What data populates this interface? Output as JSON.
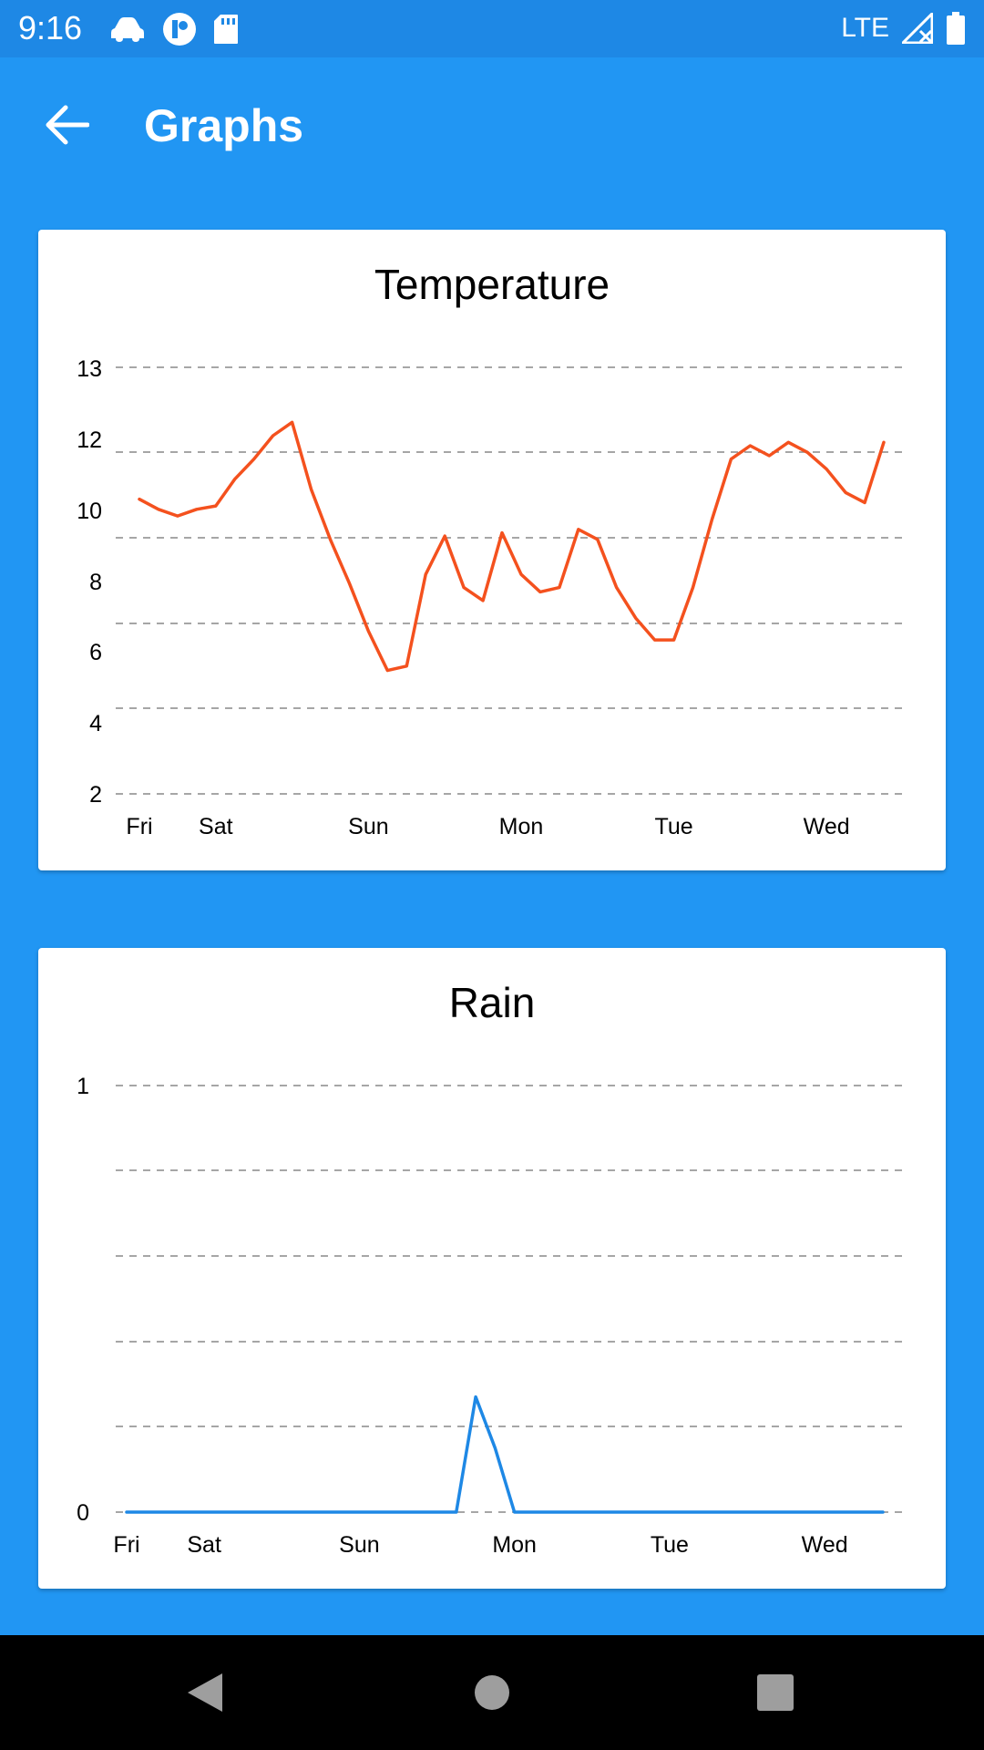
{
  "status_bar": {
    "time": "9:16",
    "network": "LTE",
    "left_icons": [
      "car-icon",
      "app-notification-icon",
      "sd-card-icon"
    ],
    "right_icons": [
      "signal-icon",
      "battery-icon"
    ]
  },
  "app_bar": {
    "title": "Graphs",
    "back_icon": "arrow-back-icon"
  },
  "colors": {
    "background": "#2196F3",
    "status_bar": "#1E88E5",
    "temperature_line": "#F4511E",
    "rain_line": "#1E88E5",
    "grid": "#888888"
  },
  "nav_bar": {
    "icons": [
      "back-triangle-icon",
      "home-circle-icon",
      "recents-square-icon"
    ]
  },
  "chart_data": [
    {
      "type": "line",
      "title": "Temperature",
      "xlabel": "",
      "ylabel": "",
      "x_tick_labels": [
        {
          "label": "Fri",
          "x": 0
        },
        {
          "label": "Sat",
          "x": 4
        },
        {
          "label": "Sun",
          "x": 12
        },
        {
          "label": "Mon",
          "x": 20
        },
        {
          "label": "Tue",
          "x": 28
        },
        {
          "label": "Wed",
          "x": 36
        }
      ],
      "y_tick_labels": [
        "2",
        "4",
        "6",
        "8",
        "10",
        "12",
        "13"
      ],
      "grid": true,
      "x": [
        0,
        1,
        2,
        3,
        4,
        5,
        6,
        7,
        8,
        9,
        10,
        11,
        12,
        13,
        14,
        15,
        16,
        17,
        18,
        19,
        20,
        21,
        22,
        23,
        24,
        25,
        26,
        27,
        28,
        29,
        30,
        31,
        32,
        33,
        34,
        35,
        36,
        37,
        38,
        39
      ],
      "series": [
        {
          "values": [
            8.0,
            7.7,
            7.5,
            7.7,
            7.8,
            8.6,
            9.2,
            9.9,
            10.3,
            8.3,
            6.8,
            5.8,
            4.7,
            3.8,
            3.9,
            6.0,
            6.9,
            5.7,
            5.4,
            7.0,
            6.0,
            5.6,
            5.7,
            7.1,
            6.8,
            5.7,
            5.0,
            4.5,
            4.5,
            5.7,
            7.4,
            9.2,
            9.6,
            9.3,
            9.7,
            9.4,
            8.9,
            8.2,
            7.9,
            9.7
          ]
        }
      ]
    },
    {
      "type": "line",
      "title": "Rain",
      "xlabel": "",
      "ylabel": "",
      "x_tick_labels": [
        {
          "label": "Fri",
          "x": 0
        },
        {
          "label": "Sat",
          "x": 4
        },
        {
          "label": "Sun",
          "x": 12
        },
        {
          "label": "Mon",
          "x": 20
        },
        {
          "label": "Tue",
          "x": 28
        },
        {
          "label": "Wed",
          "x": 36
        }
      ],
      "y_tick_labels": [
        "0",
        "1"
      ],
      "ylim": [
        0,
        1
      ],
      "grid": true,
      "x": [
        0,
        1,
        2,
        3,
        4,
        5,
        6,
        7,
        8,
        9,
        10,
        11,
        12,
        13,
        14,
        15,
        16,
        17,
        18,
        19,
        20,
        21,
        22,
        23,
        24,
        25,
        26,
        27,
        28,
        29,
        30,
        31,
        32,
        33,
        34,
        35,
        36,
        37,
        38,
        39
      ],
      "series": [
        {
          "values": [
            0,
            0,
            0,
            0,
            0,
            0,
            0,
            0,
            0,
            0,
            0,
            0,
            0,
            0,
            0,
            0,
            0,
            0,
            0.27,
            0.15,
            0,
            0,
            0,
            0,
            0,
            0,
            0,
            0,
            0,
            0,
            0,
            0,
            0,
            0,
            0,
            0,
            0,
            0,
            0,
            0
          ]
        }
      ]
    }
  ]
}
